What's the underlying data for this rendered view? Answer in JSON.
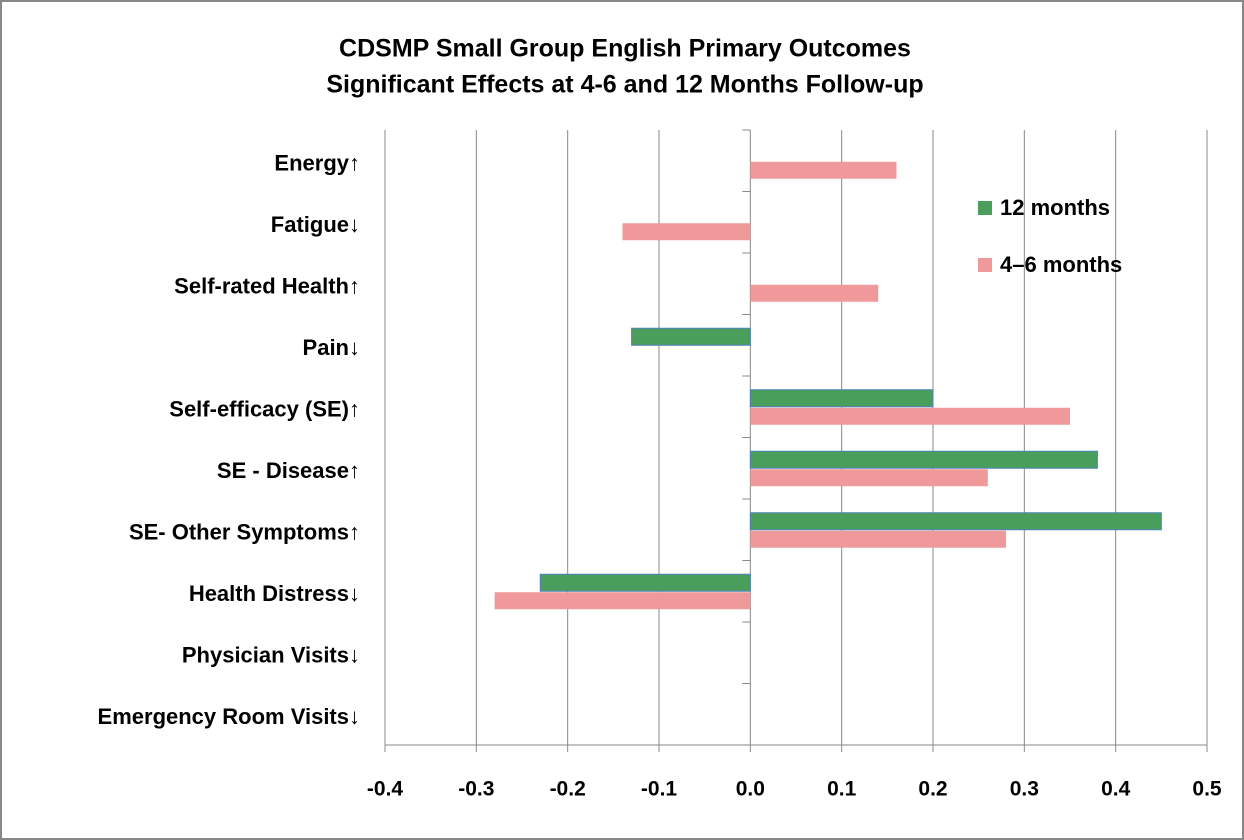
{
  "chart_data": {
    "type": "barh",
    "title": [
      "CDSMP Small Group English Primary Outcomes",
      "Significant Effects at 4-6 and 12 Months Follow-up"
    ],
    "categories": [
      "Energy↑",
      "Fatigue↓",
      "Self-rated Health↑",
      "Pain↓",
      "Self-efficacy (SE)↑",
      "SE - Disease↑",
      "SE- Other Symptoms↑",
      "Health Distress↓",
      "Physician Visits↓",
      "Emergency Room Visits↓"
    ],
    "series": [
      {
        "name": "12 months",
        "color": "#4a9e5c",
        "values": [
          null,
          null,
          null,
          -0.13,
          0.2,
          0.38,
          0.45,
          -0.23,
          null,
          null
        ]
      },
      {
        "name": "4–6 months",
        "color": "#f0999b",
        "values": [
          0.16,
          -0.14,
          0.14,
          null,
          0.35,
          0.26,
          0.28,
          -0.28,
          null,
          null
        ]
      }
    ],
    "xlim": [
      -0.4,
      0.5
    ],
    "xticks": [
      -0.4,
      -0.3,
      -0.2,
      -0.1,
      {
        "value": 0,
        "label": "0.0"
      },
      0.1,
      0.2,
      0.3,
      0.4,
      0.5
    ],
    "grid": true,
    "legend": "upper right"
  }
}
